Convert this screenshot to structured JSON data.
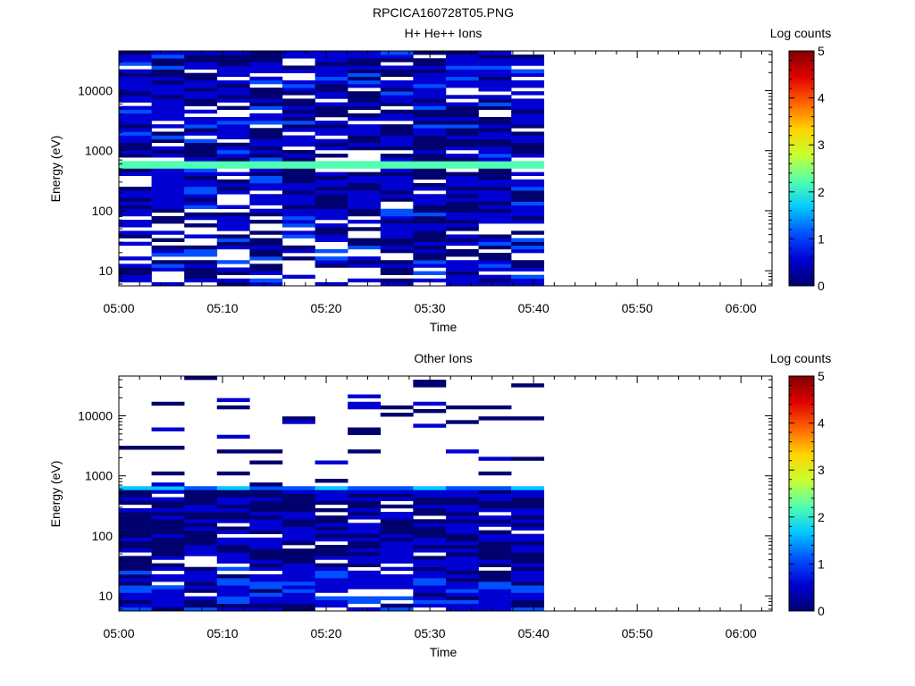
{
  "page_title": "RPCICA160728T05.PNG",
  "colorbar": {
    "colors": [
      "#00006e",
      "#0000d2",
      "#0050ff",
      "#00c8ff",
      "#50ffb0",
      "#c8ff30",
      "#ffd200",
      "#ff6400",
      "#e00000",
      "#800000"
    ]
  },
  "chart_data": [
    {
      "type": "heatmap",
      "title": "H+ He++ Ions",
      "xlabel": "Time",
      "ylabel": "Energy (eV)",
      "colorbar_label": "Log counts",
      "x_ticks": [
        "05:00",
        "05:10",
        "05:20",
        "05:30",
        "05:40",
        "05:50",
        "06:00"
      ],
      "y_ticks": [
        "10",
        "100",
        "1000",
        "10000"
      ],
      "colorbar_ticks": [
        "0",
        "1",
        "2",
        "3",
        "4",
        "5"
      ],
      "y_scale": "log",
      "xlim": [
        "05:00",
        "06:03"
      ],
      "ylim": [
        5.6,
        46000
      ],
      "zlim": [
        0,
        5
      ],
      "data_time_range": [
        "05:00",
        "05:41"
      ],
      "time_bins": 13,
      "energy_bins": 64,
      "band": {
        "energy_range": [
          540,
          720
        ],
        "log_counts": 2.3
      },
      "fill_fraction": 0.85,
      "level_range": [
        0.1,
        1.1
      ]
    },
    {
      "type": "heatmap",
      "title": "Other Ions",
      "xlabel": "Time",
      "ylabel": "Energy (eV)",
      "colorbar_label": "Log counts",
      "x_ticks": [
        "05:00",
        "05:10",
        "05:20",
        "05:30",
        "05:40",
        "05:50",
        "06:00"
      ],
      "y_ticks": [
        "10",
        "100",
        "1000",
        "10000"
      ],
      "colorbar_ticks": [
        "0",
        "1",
        "2",
        "3",
        "4",
        "5"
      ],
      "y_scale": "log",
      "xlim": [
        "05:00",
        "06:03"
      ],
      "ylim": [
        5.6,
        46000
      ],
      "zlim": [
        0,
        5
      ],
      "data_time_range": [
        "05:00",
        "05:41"
      ],
      "time_bins": 13,
      "energy_bins": 64,
      "band": {
        "energy_range": [
          560,
          700
        ],
        "log_counts": 1.5
      },
      "low_energy_fill_below": 600,
      "low_fill_fraction": 0.9,
      "high_fill_fraction": 0.12,
      "level_range": [
        0.05,
        0.9
      ]
    }
  ]
}
